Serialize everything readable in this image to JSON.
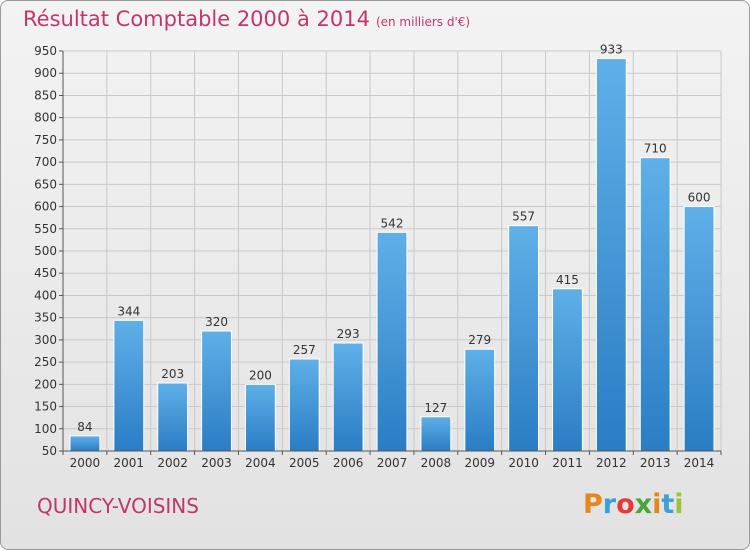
{
  "header": {
    "title": "Résultat Comptable 2000 à 2014",
    "unit": "(en milliers d'€)"
  },
  "footer": {
    "commune": "QUINCY-VOISINS",
    "logo_text": "Proxiti"
  },
  "colors": {
    "title": "#c2366e",
    "bar_light": "#5fb0e8",
    "bar_dark": "#2a7dc4",
    "logo": [
      "#e6861c",
      "#3aa0d8",
      "#e33b3b",
      "#49a53a",
      "#e6861c",
      "#3aa0d8",
      "#9cc43b"
    ]
  },
  "chart_data": {
    "type": "bar",
    "categories": [
      "2000",
      "2001",
      "2002",
      "2003",
      "2004",
      "2005",
      "2006",
      "2007",
      "2008",
      "2009",
      "2010",
      "2011",
      "2012",
      "2013",
      "2014"
    ],
    "values": [
      84,
      344,
      203,
      320,
      200,
      257,
      293,
      542,
      127,
      279,
      557,
      415,
      933,
      710,
      600
    ],
    "ylim": [
      50,
      950
    ],
    "yticks": [
      50,
      100,
      150,
      200,
      250,
      300,
      350,
      400,
      450,
      500,
      550,
      600,
      650,
      700,
      750,
      800,
      850,
      900,
      950
    ],
    "grid": true,
    "legend": "none"
  }
}
